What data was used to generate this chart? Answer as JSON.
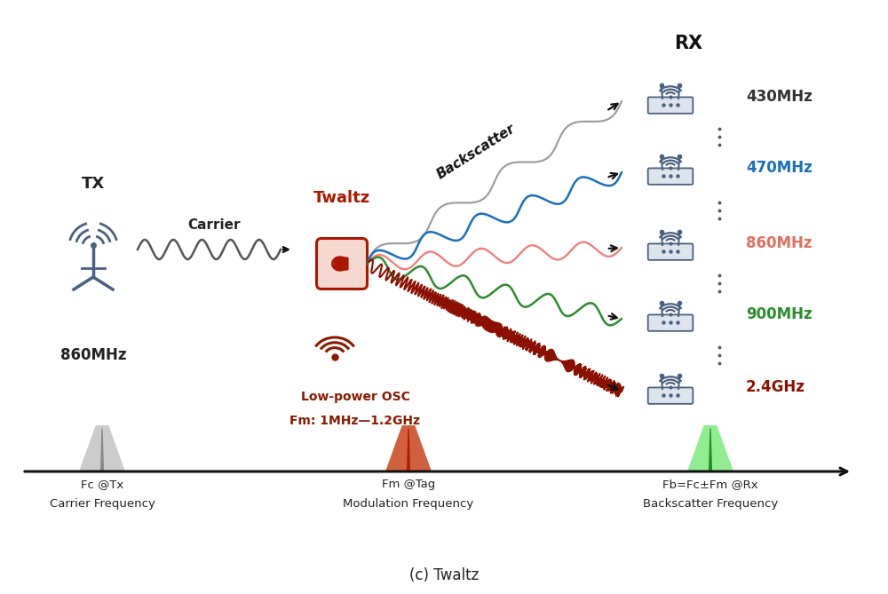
{
  "title": "(c) Twaltz",
  "bg_color": "#ffffff",
  "tx_label": "TX",
  "tx_freq": "860MHz",
  "carrier_label": "Carrier",
  "twaltz_label": "Twaltz",
  "osc_label1": "Low-power OSC",
  "osc_label2": "Fm: 1MHz—1.2GHz",
  "rx_label": "RX",
  "backscatter_label": "Backscatter",
  "freq_labels": [
    "430MHz",
    "470MHz",
    "860MHz",
    "900MHz",
    "2.4GHz"
  ],
  "freq_colors": [
    "#333333",
    "#1a6fbc",
    "#e07060",
    "#2e8b2e",
    "#8b1000"
  ],
  "wave_colors": [
    "#999999",
    "#1a6fbc",
    "#f08080",
    "#2e8b2e",
    "#8b1000"
  ],
  "fc_label1": "Fc @Tx",
  "fc_label2": "Carrier Frequency",
  "fm_label1": "Fm @Tag",
  "fm_label2": "Modulation Frequency",
  "fb_label1": "Fb=Fc±Fm @Rx",
  "fb_label2": "Backscatter Frequency",
  "twaltz_color": "#aa1800",
  "osc_color": "#8b1a00",
  "arrow_color": "#111111",
  "tx_color": "#4a6080"
}
